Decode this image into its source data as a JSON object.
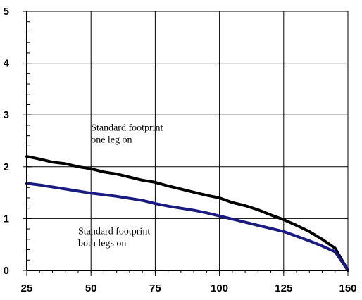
{
  "chart_data": {
    "type": "line",
    "title": "",
    "xlabel": "",
    "ylabel": "",
    "xlim": [
      25,
      150
    ],
    "ylim": [
      0,
      5
    ],
    "x_ticks": [
      25,
      50,
      75,
      100,
      125,
      150
    ],
    "y_ticks": [
      0,
      1,
      2,
      3,
      4,
      5
    ],
    "grid": true,
    "legend": "none",
    "series": [
      {
        "color": "#000000",
        "x": [
          25,
          30,
          35,
          40,
          45,
          50,
          55,
          60,
          65,
          70,
          75,
          80,
          85,
          90,
          95,
          100,
          105,
          110,
          115,
          120,
          125,
          130,
          135,
          140,
          145,
          150
        ],
        "y": [
          2.2,
          2.15,
          2.09,
          2.06,
          2.0,
          1.96,
          1.9,
          1.86,
          1.8,
          1.74,
          1.7,
          1.63,
          1.57,
          1.51,
          1.45,
          1.4,
          1.31,
          1.25,
          1.17,
          1.07,
          0.98,
          0.87,
          0.75,
          0.6,
          0.43,
          0.0
        ]
      },
      {
        "color": "#1a1a80",
        "x": [
          25,
          30,
          35,
          40,
          45,
          50,
          55,
          60,
          65,
          70,
          75,
          80,
          85,
          90,
          95,
          100,
          105,
          110,
          115,
          120,
          125,
          130,
          135,
          140,
          145,
          150
        ],
        "y": [
          1.68,
          1.65,
          1.61,
          1.57,
          1.53,
          1.49,
          1.46,
          1.43,
          1.39,
          1.35,
          1.29,
          1.24,
          1.2,
          1.16,
          1.11,
          1.05,
          0.99,
          0.93,
          0.87,
          0.81,
          0.75,
          0.66,
          0.57,
          0.47,
          0.36,
          0.0
        ]
      }
    ],
    "annotations": [
      {
        "lines": [
          "Standard footprint",
          "one leg on"
        ],
        "at": [
          25,
          2.7
        ]
      },
      {
        "lines": [
          "Standard footprint",
          "both legs on"
        ],
        "at": [
          20,
          0.7
        ]
      }
    ]
  }
}
